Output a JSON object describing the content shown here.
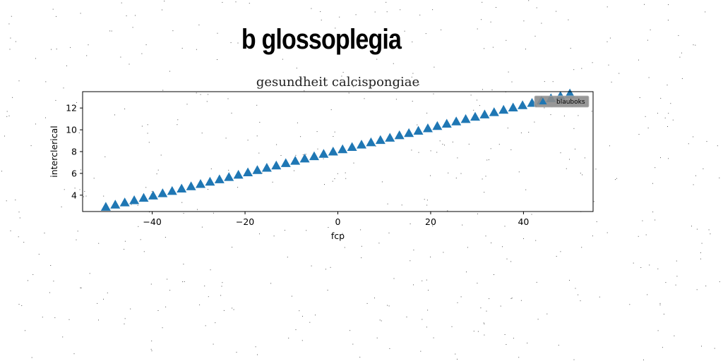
{
  "figure": {
    "suptitle": "b glossoplegia"
  },
  "chart_data": {
    "type": "scatter",
    "title": "gesundheit calcispongiae",
    "xlabel": "fcp",
    "ylabel": "interclerical",
    "xlim": [
      -55,
      55
    ],
    "ylim": [
      2.5,
      13.5
    ],
    "xticks": [
      -40,
      -20,
      0,
      20,
      40
    ],
    "xtick_labels": [
      "−40",
      "−20",
      "0",
      "20",
      "40"
    ],
    "yticks": [
      4,
      6,
      8,
      10,
      12
    ],
    "ytick_labels": [
      "4",
      "6",
      "8",
      "10",
      "12"
    ],
    "grid": false,
    "legend_position": "top-right",
    "marker": "triangle-up",
    "series": [
      {
        "name": "blauboks",
        "color": "#1f77b4",
        "x": [
          -50,
          -47.96,
          -45.92,
          -43.88,
          -41.84,
          -39.8,
          -37.76,
          -35.71,
          -33.67,
          -31.63,
          -29.59,
          -27.55,
          -25.51,
          -23.47,
          -21.43,
          -19.39,
          -17.35,
          -15.31,
          -13.27,
          -11.22,
          -9.18,
          -7.14,
          -5.1,
          -3.06,
          -1.02,
          1.02,
          3.06,
          5.1,
          7.14,
          9.18,
          11.22,
          13.27,
          15.31,
          17.35,
          19.39,
          21.43,
          23.47,
          25.51,
          27.55,
          29.59,
          31.63,
          33.67,
          35.71,
          37.76,
          39.8,
          41.84,
          43.88,
          45.92,
          47.96,
          50
        ],
        "y": [
          2.9,
          3.1,
          3.3,
          3.5,
          3.72,
          3.93,
          4.14,
          4.35,
          4.57,
          4.78,
          4.99,
          5.2,
          5.42,
          5.63,
          5.84,
          6.06,
          6.27,
          6.48,
          6.69,
          6.91,
          7.12,
          7.33,
          7.54,
          7.76,
          7.97,
          8.18,
          8.39,
          8.61,
          8.82,
          9.03,
          9.24,
          9.46,
          9.67,
          9.88,
          10.1,
          10.31,
          10.52,
          10.73,
          10.95,
          11.16,
          11.37,
          11.58,
          11.8,
          12.01,
          12.22,
          12.43,
          12.65,
          12.86,
          13.07,
          13.3
        ]
      }
    ]
  }
}
